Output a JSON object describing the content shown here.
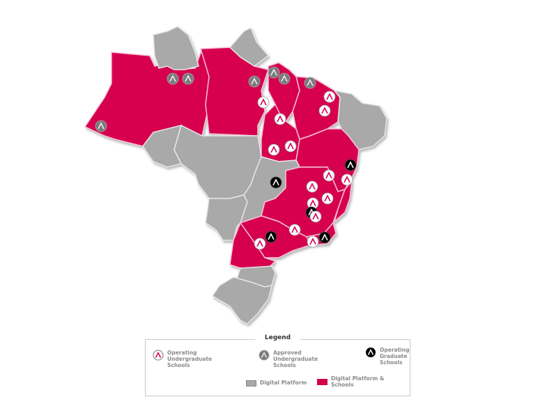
{
  "colors": {
    "schools_states": "#d6004f",
    "digital_states": "#a9a9a9",
    "graduate": "#000000",
    "approved": "#7a7a7a"
  },
  "legend": {
    "title": "Legend",
    "items": [
      {
        "label": "Operating Undergraduate Schools",
        "icon": "undergrad-marker-icon"
      },
      {
        "label": "Approved Undergraduate Schools",
        "icon": "approved-marker-icon"
      },
      {
        "label": "Operating Graduate Schools",
        "icon": "graduate-marker-icon"
      },
      {
        "label": "Digital Platform",
        "icon": "gray-swatch"
      },
      {
        "label": "Digital Platform & Schools",
        "icon": "pink-swatch"
      }
    ]
  }
}
